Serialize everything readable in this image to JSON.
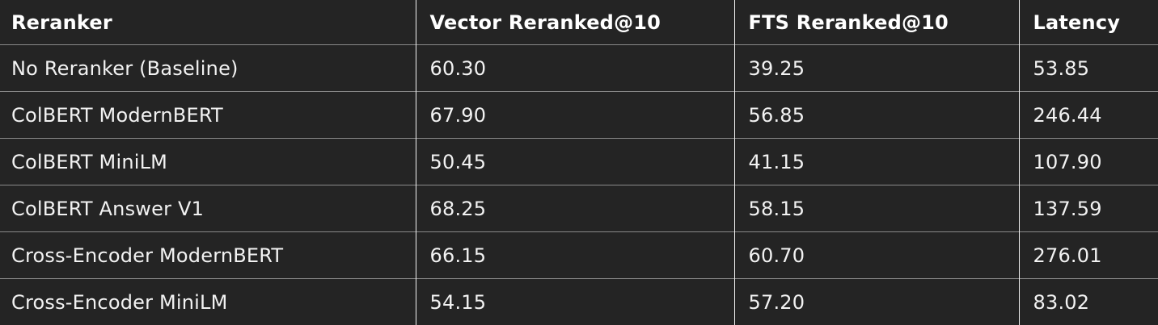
{
  "table": {
    "headers": [
      "Reranker",
      "Vector Reranked@10",
      "FTS Reranked@10",
      "Latency"
    ],
    "rows": [
      [
        "No Reranker (Baseline)",
        "60.30",
        "39.25",
        "53.85"
      ],
      [
        "ColBERT ModernBERT",
        "67.90",
        "56.85",
        "246.44"
      ],
      [
        "ColBERT MiniLM",
        "50.45",
        "41.15",
        "107.90"
      ],
      [
        "ColBERT Answer V1",
        "68.25",
        "58.15",
        "137.59"
      ],
      [
        "Cross-Encoder ModernBERT",
        "66.15",
        "60.70",
        "276.01"
      ],
      [
        "Cross-Encoder MiniLM",
        "54.15",
        "57.20",
        "83.02"
      ]
    ]
  },
  "colors": {
    "background": "#242424",
    "text": "#f2f2f2",
    "row_border": "#8a8a8a",
    "column_border": "#f0f0f0"
  }
}
